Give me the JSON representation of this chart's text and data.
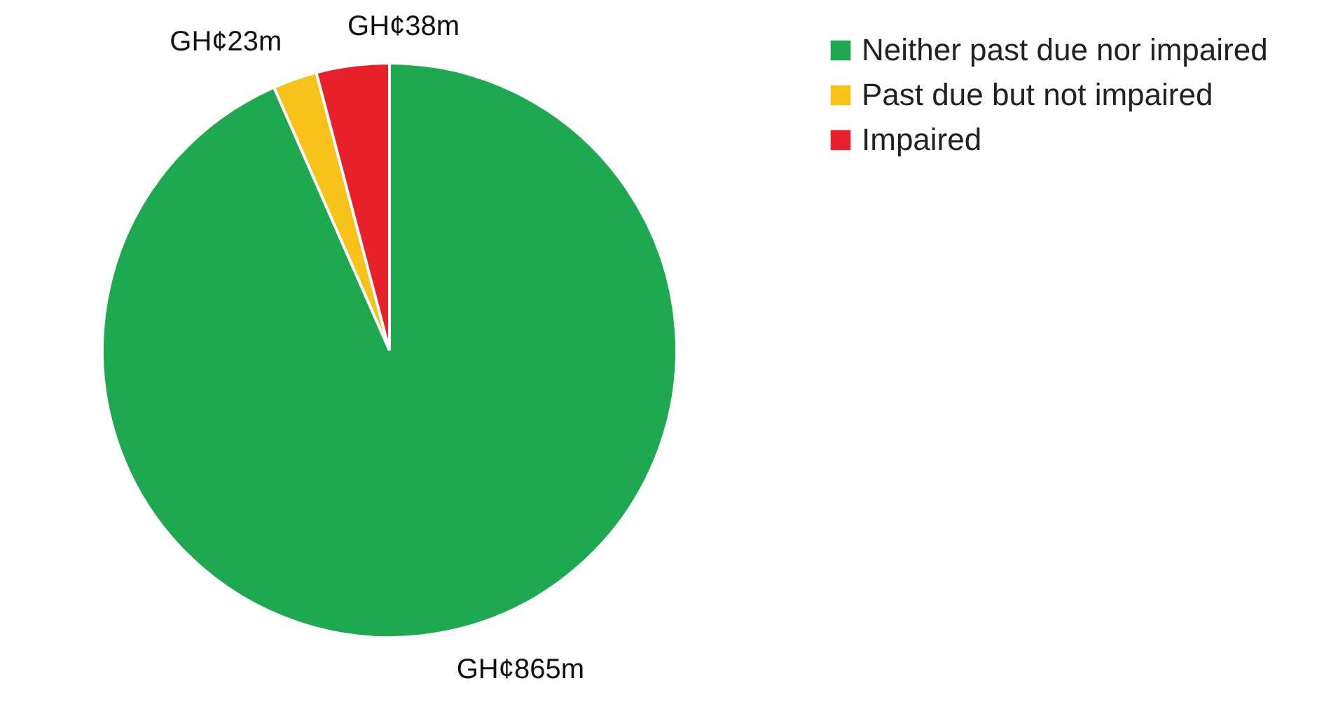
{
  "chart_data": {
    "type": "pie",
    "categories": [
      "Neither past due nor impaired",
      "Past due but not impaired",
      "Impaired"
    ],
    "values": [
      865,
      23,
      38
    ],
    "colors": [
      "#1ea84f",
      "#f7c21a",
      "#e8202a"
    ],
    "value_labels": [
      "GH¢865m",
      "GH¢23m",
      "GH¢38m"
    ],
    "legend": "right"
  }
}
